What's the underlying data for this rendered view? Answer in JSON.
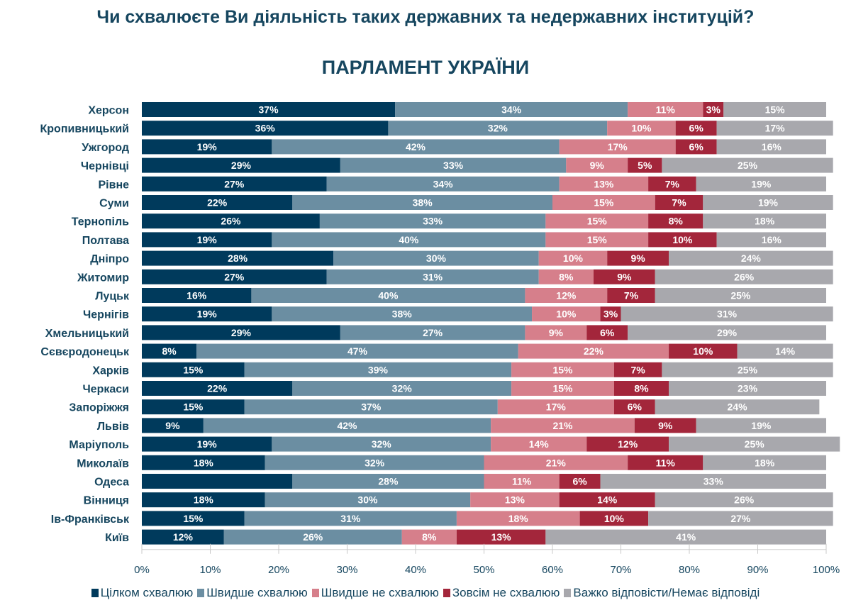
{
  "question": "Чи схвалюєте Ви діяльність таких державних та недержавних інституцій?",
  "chart_data": {
    "type": "bar",
    "orientation": "horizontal",
    "stacked": true,
    "title": "ПАРЛАМЕНТ УКРАЇНИ",
    "categories": [
      "Херсон",
      "Кропивницький",
      "Ужгород",
      "Чернівці",
      "Рівне",
      "Суми",
      "Тернопіль",
      "Полтава",
      "Дніпро",
      "Житомир",
      "Луцьк",
      "Чернігів",
      "Хмельницький",
      "Сєвєродонецьк",
      "Харків",
      "Черкаси",
      "Запоріжжя",
      "Львів",
      "Маріуполь",
      "Миколаїв",
      "Одеса",
      "Вінниця",
      "Ів-Франківськ",
      "Київ"
    ],
    "series": [
      {
        "name": "Цілком схвалюю",
        "color": "#003a5c",
        "values": [
          37,
          36,
          19,
          29,
          27,
          22,
          26,
          19,
          28,
          27,
          16,
          19,
          29,
          8,
          15,
          22,
          15,
          9,
          19,
          18,
          22,
          18,
          15,
          12
        ]
      },
      {
        "name": "Швидше схвалюю",
        "color": "#6b8ea2",
        "values": [
          34,
          32,
          42,
          33,
          34,
          38,
          33,
          40,
          30,
          31,
          40,
          38,
          27,
          47,
          39,
          32,
          37,
          42,
          32,
          32,
          28,
          30,
          31,
          26
        ]
      },
      {
        "name": "Швидше не схвалюю",
        "color": "#d67f8b",
        "values": [
          11,
          10,
          17,
          9,
          13,
          15,
          15,
          15,
          10,
          8,
          12,
          10,
          9,
          22,
          15,
          15,
          17,
          21,
          14,
          21,
          11,
          13,
          18,
          8
        ]
      },
      {
        "name": "Зовсім не схвалюю",
        "color": "#a3263b",
        "values": [
          3,
          6,
          6,
          5,
          7,
          7,
          8,
          10,
          9,
          9,
          7,
          3,
          6,
          10,
          7,
          8,
          6,
          9,
          12,
          11,
          6,
          14,
          10,
          13
        ]
      },
      {
        "name": "Важко відповісти/Немає відповіді",
        "color": "#a8a8ad",
        "values": [
          15,
          17,
          16,
          25,
          19,
          19,
          18,
          16,
          24,
          26,
          25,
          31,
          29,
          14,
          25,
          23,
          24,
          19,
          25,
          18,
          33,
          26,
          27,
          41
        ]
      }
    ],
    "unlabeled_segments": [
      {
        "category": "Одеса",
        "series": "Цілком схвалюю"
      }
    ],
    "xlim": [
      0,
      100
    ],
    "xticks": [
      "0%",
      "10%",
      "20%",
      "30%",
      "40%",
      "50%",
      "60%",
      "70%",
      "80%",
      "90%",
      "100%"
    ],
    "grid": false,
    "legend_position": "bottom"
  }
}
